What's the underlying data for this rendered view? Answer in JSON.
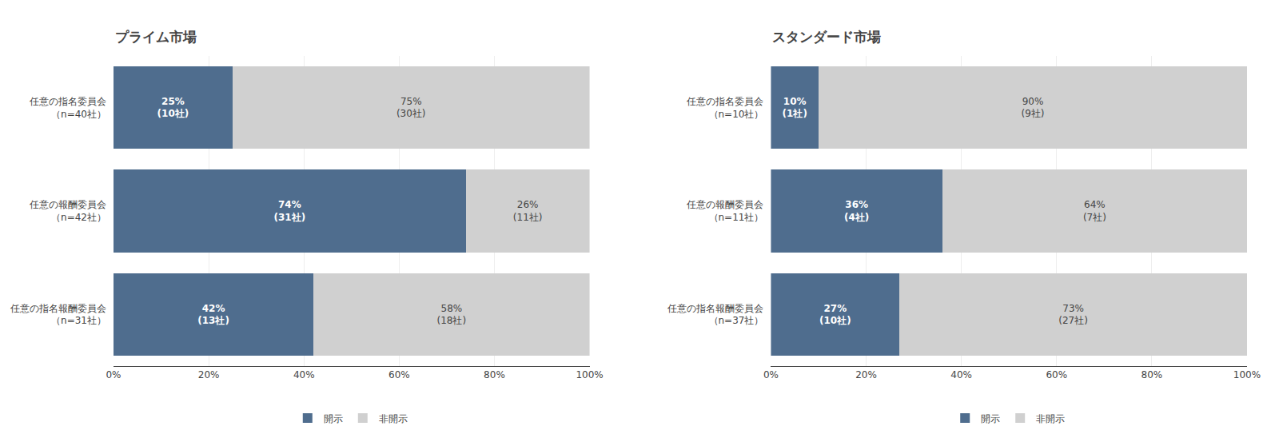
{
  "chart_data": [
    {
      "type": "bar",
      "orientation": "horizontal",
      "stacked": true,
      "title": "プライム市場",
      "categories": [
        "任意の指名委員会\n（n=40社）",
        "任意の報酬委員会\n（n=42社）",
        "任意の指名報酬委員会\n（n=31社）"
      ],
      "series": [
        {
          "name": "開示",
          "color": "#4f6d8e",
          "values": [
            25,
            74,
            42
          ],
          "value_labels": [
            "25%\n(10社)",
            "74%\n(31社)",
            "42%\n(13社)"
          ]
        },
        {
          "name": "非開示",
          "color": "#d0d0d0",
          "values": [
            75,
            26,
            58
          ],
          "value_labels": [
            "75%\n(30社)",
            "26%\n(11社)",
            "58%\n(18社)"
          ]
        }
      ],
      "xlim": [
        0,
        100
      ],
      "xticks": [
        {
          "value": 0,
          "label": "0%"
        },
        {
          "value": 20,
          "label": "20%"
        },
        {
          "value": 40,
          "label": "40%"
        },
        {
          "value": 60,
          "label": "60%"
        },
        {
          "value": 80,
          "label": "80%"
        },
        {
          "value": 100,
          "label": "100%"
        }
      ],
      "grid": true,
      "legend": "bottom",
      "data_labels": true
    },
    {
      "type": "bar",
      "orientation": "horizontal",
      "stacked": true,
      "title": "スタンダード市場",
      "categories": [
        "任意の指名委員会\n（n=10社）",
        "任意の報酬委員会\n（n=11社）",
        "任意の指名報酬委員会\n（n=37社）"
      ],
      "series": [
        {
          "name": "開示",
          "color": "#4f6d8e",
          "values": [
            10,
            36,
            27
          ],
          "value_labels": [
            "10%\n(1社)",
            "36%\n(4社)",
            "27%\n(10社)"
          ]
        },
        {
          "name": "非開示",
          "color": "#d0d0d0",
          "values": [
            90,
            64,
            73
          ],
          "value_labels": [
            "90%\n(9社)",
            "64%\n(7社)",
            "73%\n(27社)"
          ]
        }
      ],
      "xlim": [
        0,
        100
      ],
      "xticks": [
        {
          "value": 0,
          "label": "0%"
        },
        {
          "value": 20,
          "label": "20%"
        },
        {
          "value": 40,
          "label": "40%"
        },
        {
          "value": 60,
          "label": "60%"
        },
        {
          "value": 80,
          "label": "80%"
        },
        {
          "value": 100,
          "label": "100%"
        }
      ],
      "grid": true,
      "legend": "bottom",
      "data_labels": true
    }
  ]
}
